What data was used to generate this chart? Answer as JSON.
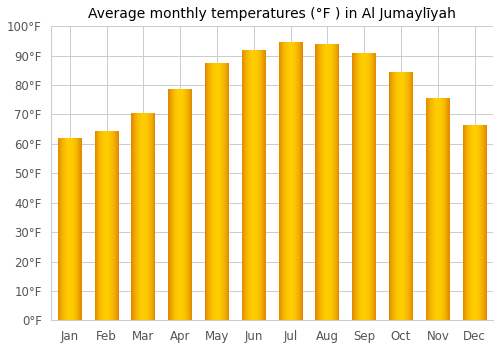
{
  "title": "Average monthly temperatures (°F ) in Al Jumaylīyah",
  "months": [
    "Jan",
    "Feb",
    "Mar",
    "Apr",
    "May",
    "Jun",
    "Jul",
    "Aug",
    "Sep",
    "Oct",
    "Nov",
    "Dec"
  ],
  "values": [
    62,
    64.5,
    70.5,
    78.5,
    87.5,
    92,
    94.5,
    94,
    91,
    84.5,
    75.5,
    66.5
  ],
  "bar_color_center": "#FFCC00",
  "bar_color_edge": "#E08800",
  "ylim": [
    0,
    100
  ],
  "yticks": [
    0,
    10,
    20,
    30,
    40,
    50,
    60,
    70,
    80,
    90,
    100
  ],
  "ytick_labels": [
    "0°F",
    "10°F",
    "20°F",
    "30°F",
    "40°F",
    "50°F",
    "60°F",
    "70°F",
    "80°F",
    "90°F",
    "100°F"
  ],
  "background_color": "#ffffff",
  "grid_color": "#cccccc",
  "title_fontsize": 10,
  "tick_fontsize": 8.5,
  "bar_width": 0.65
}
